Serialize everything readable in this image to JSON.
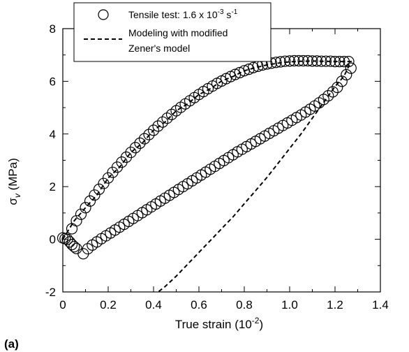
{
  "panel_label": "(a)",
  "chart_data": {
    "type": "scatter",
    "title": "",
    "xlabel": {
      "base": "True strain (10",
      "sup": "-2",
      "tail": ")"
    },
    "ylabel": {
      "sigma": "σ",
      "sub": "v",
      "tail": " (MPa)"
    },
    "xlim": [
      0,
      1.4
    ],
    "ylim": [
      -2,
      8
    ],
    "xticks": [
      0,
      0.2,
      0.4,
      0.6,
      0.8,
      1.0,
      1.2,
      1.4
    ],
    "xtick_labels": [
      "0",
      "0.2",
      "0.4",
      "0.6",
      "0.8",
      "1.0",
      "1.2",
      "1.4"
    ],
    "yticks": [
      -2,
      0,
      2,
      4,
      6,
      8
    ],
    "ytick_labels": [
      "-2",
      "0",
      "2",
      "4",
      "6",
      "8"
    ],
    "grid": false,
    "legend": {
      "placement": "top-center",
      "entries": [
        {
          "marker": "circle",
          "parts": [
            {
              "text": "Tensile test: 1.6 x 10"
            },
            {
              "text": "-3",
              "sup": true
            },
            {
              "text": " s"
            },
            {
              "text": "-1",
              "sup": true
            }
          ]
        },
        {
          "marker": "dashed-line",
          "lines": [
            "Modeling with modified",
            "Zener's model"
          ]
        }
      ]
    },
    "series": [
      {
        "marker": "open-circle",
        "x": [
          0.0,
          0.01,
          0.02,
          0.03,
          0.04,
          0.05,
          0.06,
          0.04,
          0.06,
          0.08,
          0.1,
          0.12,
          0.14,
          0.16,
          0.18,
          0.2,
          0.22,
          0.24,
          0.26,
          0.28,
          0.3,
          0.32,
          0.34,
          0.36,
          0.38,
          0.4,
          0.42,
          0.44,
          0.46,
          0.48,
          0.5,
          0.52,
          0.54,
          0.56,
          0.58,
          0.6,
          0.62,
          0.64,
          0.66,
          0.68,
          0.7,
          0.72,
          0.74,
          0.76,
          0.78,
          0.8,
          0.82,
          0.84,
          0.86,
          0.88,
          0.9,
          0.92,
          0.94,
          0.96,
          0.98,
          1.0,
          1.02,
          1.04,
          1.06,
          1.08,
          1.1,
          1.12,
          1.14,
          1.16,
          1.18,
          1.2,
          1.22,
          1.24,
          1.26,
          1.27,
          1.25,
          1.23,
          1.21,
          1.19,
          1.17,
          1.15,
          1.13,
          1.11,
          1.09,
          1.07,
          1.05,
          1.03,
          1.01,
          0.99,
          0.97,
          0.95,
          0.93,
          0.91,
          0.89,
          0.87,
          0.85,
          0.83,
          0.81,
          0.79,
          0.77,
          0.75,
          0.73,
          0.71,
          0.69,
          0.67,
          0.65,
          0.63,
          0.61,
          0.59,
          0.57,
          0.55,
          0.53,
          0.51,
          0.49,
          0.47,
          0.45,
          0.43,
          0.41,
          0.39,
          0.37,
          0.35,
          0.33,
          0.31,
          0.29,
          0.27,
          0.25,
          0.23,
          0.21,
          0.19,
          0.17,
          0.15,
          0.13,
          0.11,
          0.09
        ],
        "y": [
          0.05,
          0.02,
          0.0,
          -0.1,
          -0.2,
          -0.28,
          -0.35,
          0.4,
          0.7,
          0.95,
          1.2,
          1.45,
          1.68,
          1.9,
          2.12,
          2.33,
          2.54,
          2.74,
          2.93,
          3.12,
          3.3,
          3.48,
          3.65,
          3.82,
          3.98,
          4.14,
          4.3,
          4.45,
          4.6,
          4.74,
          4.88,
          5.01,
          5.14,
          5.26,
          5.38,
          5.5,
          5.61,
          5.72,
          5.82,
          5.92,
          6.01,
          6.1,
          6.18,
          6.26,
          6.33,
          6.4,
          6.46,
          6.52,
          6.57,
          6.62,
          6.66,
          6.69,
          6.72,
          6.74,
          6.76,
          6.77,
          6.78,
          6.78,
          6.78,
          6.78,
          6.77,
          6.77,
          6.76,
          6.76,
          6.76,
          6.75,
          6.75,
          6.75,
          6.75,
          6.5,
          6.25,
          6.0,
          5.77,
          5.6,
          5.45,
          5.31,
          5.18,
          5.06,
          4.94,
          4.83,
          4.72,
          4.62,
          4.52,
          4.42,
          4.32,
          4.22,
          4.12,
          4.02,
          3.92,
          3.82,
          3.72,
          3.62,
          3.52,
          3.42,
          3.32,
          3.21,
          3.1,
          2.99,
          2.88,
          2.77,
          2.66,
          2.55,
          2.44,
          2.33,
          2.22,
          2.11,
          2.0,
          1.89,
          1.78,
          1.67,
          1.56,
          1.45,
          1.34,
          1.23,
          1.12,
          1.01,
          0.9,
          0.79,
          0.68,
          0.57,
          0.46,
          0.35,
          0.24,
          0.13,
          0.02,
          -0.1,
          -0.22,
          -0.36,
          -0.55
        ]
      },
      {
        "style": "dashed-line",
        "x": [
          0.0,
          0.05,
          0.1,
          0.15,
          0.2,
          0.25,
          0.3,
          0.35,
          0.4,
          0.45,
          0.5,
          0.55,
          0.6,
          0.65,
          0.7,
          0.75,
          0.8,
          0.85,
          0.9,
          0.95,
          1.0,
          1.05,
          1.1,
          1.15,
          1.2,
          1.25,
          1.27,
          1.24,
          1.2,
          1.15,
          1.1,
          1.05,
          1.0,
          0.95,
          0.9,
          0.85,
          0.8,
          0.75,
          0.7,
          0.65,
          0.6,
          0.55,
          0.5,
          0.45,
          0.42
        ],
        "y": [
          0.0,
          0.7,
          1.2,
          1.68,
          2.33,
          2.74,
          3.3,
          3.65,
          4.14,
          4.45,
          4.88,
          5.14,
          5.5,
          5.72,
          6.01,
          6.18,
          6.4,
          6.52,
          6.62,
          6.69,
          6.74,
          6.76,
          6.77,
          6.76,
          6.75,
          6.75,
          6.75,
          6.2,
          5.8,
          5.2,
          4.6,
          4.0,
          3.45,
          2.9,
          2.35,
          1.85,
          1.35,
          0.85,
          0.4,
          -0.05,
          -0.5,
          -0.95,
          -1.4,
          -1.8,
          -2.0
        ]
      }
    ]
  }
}
